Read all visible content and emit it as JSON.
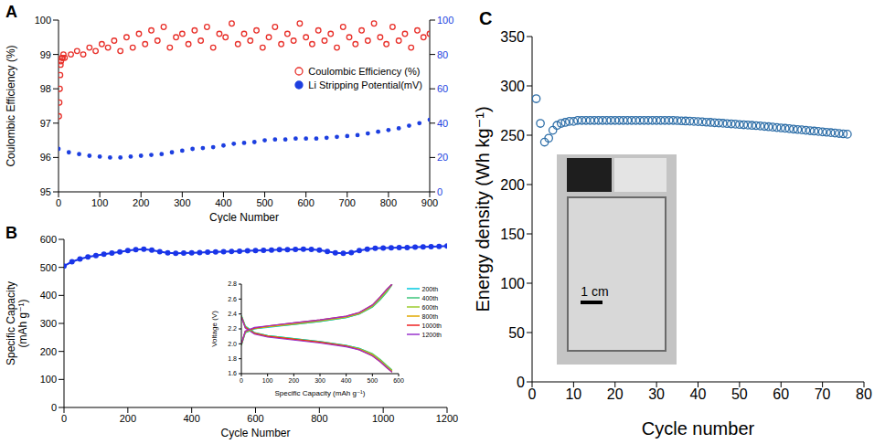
{
  "chart_data": [
    {
      "label": "A",
      "type": "scatter",
      "x_label": "Cycle Number",
      "y_label": "Coulombic Efficiency (%)",
      "xlim": [
        0,
        900
      ],
      "xticks": [
        0,
        100,
        200,
        300,
        400,
        500,
        600,
        700,
        800,
        900
      ],
      "ylim": [
        95,
        100
      ],
      "yticks": [
        95,
        96,
        97,
        98,
        99,
        100
      ],
      "y2lim": [
        0,
        100
      ],
      "y2ticks": [
        0,
        20,
        40,
        60,
        80,
        100
      ],
      "legend": "upper right",
      "series": [
        {
          "name": "Coulombic Efficiency (%)",
          "color": "#e8302a",
          "marker": "open_circle",
          "x": [
            1,
            2,
            3,
            4,
            5,
            6,
            8,
            10,
            12,
            15,
            30,
            45,
            60,
            75,
            90,
            105,
            120,
            135,
            150,
            165,
            180,
            195,
            210,
            225,
            240,
            255,
            270,
            285,
            300,
            315,
            330,
            345,
            360,
            375,
            390,
            405,
            420,
            435,
            450,
            465,
            480,
            495,
            510,
            525,
            540,
            555,
            570,
            585,
            600,
            615,
            630,
            645,
            660,
            675,
            690,
            705,
            720,
            735,
            750,
            765,
            780,
            795,
            810,
            825,
            840,
            855,
            870,
            885,
            900
          ],
          "values": [
            97.2,
            97.6,
            98.0,
            98.4,
            98.7,
            98.8,
            98.9,
            98.9,
            99.0,
            98.9,
            99.0,
            99.1,
            99.0,
            99.2,
            99.1,
            99.3,
            99.2,
            99.4,
            99.1,
            99.5,
            99.2,
            99.6,
            99.3,
            99.7,
            99.4,
            99.8,
            99.2,
            99.5,
            99.6,
            99.3,
            99.7,
            99.4,
            99.8,
            99.2,
            99.6,
            99.5,
            99.9,
            99.3,
            99.6,
            99.4,
            99.7,
            99.2,
            99.5,
            99.8,
            99.3,
            99.6,
            99.4,
            99.9,
            99.5,
            99.3,
            99.7,
            99.4,
            99.6,
            99.2,
            99.8,
            99.5,
            99.3,
            99.7,
            99.4,
            99.9,
            99.5,
            99.3,
            99.8,
            99.4,
            99.6,
            99.2,
            99.7,
            99.5,
            99.6
          ]
        },
        {
          "name": "Li Stripping Potential(mV)",
          "color": "#1d3fe0",
          "marker": "circle",
          "axis": "y2",
          "x": [
            0,
            25,
            50,
            75,
            100,
            125,
            150,
            175,
            200,
            225,
            250,
            275,
            300,
            325,
            350,
            375,
            400,
            425,
            450,
            475,
            500,
            525,
            550,
            575,
            600,
            625,
            650,
            675,
            700,
            725,
            750,
            775,
            800,
            825,
            850,
            875,
            900
          ],
          "values": [
            25,
            23,
            22,
            21,
            20.5,
            20,
            20,
            20.5,
            21,
            21.5,
            22,
            23,
            24,
            25,
            25.5,
            26,
            27,
            28,
            28.5,
            29,
            30,
            30.5,
            30.5,
            31,
            31,
            31,
            31.5,
            32,
            32.5,
            33,
            34,
            35,
            36,
            37,
            38.5,
            40,
            42
          ]
        }
      ]
    },
    {
      "label": "B",
      "type": "line",
      "x_label": "Cycle Number",
      "y_label": "Specific Capacity (mAh g⁻¹)",
      "xlim": [
        0,
        1200
      ],
      "xticks": [
        0,
        200,
        400,
        600,
        800,
        1000,
        1200
      ],
      "ylim": [
        0,
        600
      ],
      "yticks": [
        0,
        100,
        200,
        300,
        400,
        500,
        600
      ],
      "color": "#1a35e8",
      "marker": "circle",
      "x": [
        0,
        25,
        50,
        75,
        100,
        125,
        150,
        175,
        200,
        225,
        250,
        275,
        300,
        325,
        350,
        375,
        400,
        425,
        450,
        475,
        500,
        525,
        550,
        575,
        600,
        625,
        650,
        675,
        700,
        725,
        750,
        775,
        800,
        825,
        850,
        875,
        900,
        925,
        950,
        975,
        1000,
        1025,
        1050,
        1075,
        1100,
        1125,
        1150,
        1175,
        1200
      ],
      "values": [
        505,
        520,
        530,
        537,
        542,
        547,
        551,
        555,
        560,
        563,
        565,
        562,
        556,
        552,
        550,
        551,
        552,
        553,
        554,
        555,
        556,
        557,
        558,
        559,
        560,
        561,
        562,
        563,
        563,
        564,
        565,
        564,
        562,
        557,
        552,
        550,
        553,
        560,
        565,
        568,
        569,
        570,
        571,
        571,
        572,
        573,
        574,
        575,
        576
      ]
    },
    {
      "type": "line",
      "x_label": "Specific Capacity (mAh g⁻¹)",
      "y_label": "Voltage (V)",
      "xlim": [
        0,
        600
      ],
      "xticks": [
        0,
        100,
        200,
        300,
        400,
        500,
        600
      ],
      "ylim": [
        1.6,
        2.8
      ],
      "yticks": [
        1.6,
        1.8,
        {
          "value": 2,
          "label": "2.0"
        },
        2.2,
        2.4,
        2.6,
        2.8
      ],
      "legend": "upper right",
      "x": [
        0,
        15,
        50,
        100,
        200,
        300,
        400,
        450,
        500,
        530,
        555,
        575
      ],
      "series": [
        {
          "name": "200th",
          "color": "#00c8e0",
          "discharge": [
            2.38,
            2.24,
            2.15,
            2.11,
            2.07,
            2.03,
            1.98,
            1.94,
            1.86,
            1.78,
            1.7,
            1.64
          ],
          "charge": [
            1.98,
            2.15,
            2.2,
            2.22,
            2.26,
            2.3,
            2.35,
            2.4,
            2.5,
            2.6,
            2.7,
            2.8
          ]
        },
        {
          "name": "400th",
          "color": "#3cc47a",
          "discharge": [
            2.38,
            2.23,
            2.15,
            2.11,
            2.07,
            2.03,
            1.98,
            1.94,
            1.87,
            1.79,
            1.71,
            1.65
          ],
          "charge": [
            1.98,
            2.15,
            2.2,
            2.23,
            2.26,
            2.3,
            2.35,
            2.4,
            2.49,
            2.59,
            2.69,
            2.79
          ]
        },
        {
          "name": "600th",
          "color": "#9ccc2e",
          "discharge": [
            2.37,
            2.23,
            2.14,
            2.1,
            2.06,
            2.02,
            1.97,
            1.93,
            1.86,
            1.78,
            1.7,
            1.64
          ],
          "charge": [
            1.99,
            2.16,
            2.21,
            2.23,
            2.27,
            2.31,
            2.36,
            2.41,
            2.51,
            2.61,
            2.71,
            2.8
          ]
        },
        {
          "name": "800th",
          "color": "#e0a800",
          "discharge": [
            2.37,
            2.22,
            2.14,
            2.1,
            2.06,
            2.02,
            1.97,
            1.93,
            1.85,
            1.77,
            1.69,
            1.63
          ],
          "charge": [
            1.99,
            2.16,
            2.21,
            2.23,
            2.27,
            2.31,
            2.36,
            2.41,
            2.51,
            2.62,
            2.72,
            2.8
          ]
        },
        {
          "name": "1000th",
          "color": "#ee2222",
          "discharge": [
            2.36,
            2.22,
            2.14,
            2.1,
            2.06,
            2.02,
            1.97,
            1.92,
            1.84,
            1.76,
            1.68,
            1.62
          ],
          "charge": [
            2.0,
            2.17,
            2.21,
            2.24,
            2.28,
            2.32,
            2.37,
            2.42,
            2.52,
            2.63,
            2.73,
            2.8
          ]
        },
        {
          "name": "1200th",
          "color": "#9933cc",
          "discharge": [
            2.36,
            2.21,
            2.13,
            2.09,
            2.05,
            2.01,
            1.96,
            1.92,
            1.84,
            1.76,
            1.68,
            1.62
          ],
          "charge": [
            2.0,
            2.17,
            2.22,
            2.24,
            2.28,
            2.32,
            2.37,
            2.42,
            2.52,
            2.63,
            2.73,
            2.8
          ]
        }
      ]
    },
    {
      "label": "C",
      "type": "scatter",
      "x_label": "Cycle number",
      "y_label": "Energy density (Wh kg⁻¹)",
      "xlim": [
        0,
        80
      ],
      "xticks": [
        0,
        10,
        20,
        30,
        40,
        50,
        60,
        70,
        80
      ],
      "ylim": [
        0,
        350
      ],
      "yticks": [
        0,
        50,
        100,
        150,
        200,
        250,
        300,
        350
      ],
      "color": "#2f6fa8",
      "marker": "open_circle",
      "annotations": [
        "1 cm"
      ],
      "x": [
        1,
        2,
        3,
        4,
        5,
        6,
        7,
        8,
        9,
        10,
        11,
        12,
        13,
        14,
        15,
        16,
        17,
        18,
        19,
        20,
        21,
        22,
        23,
        24,
        25,
        26,
        27,
        28,
        29,
        30,
        31,
        32,
        33,
        34,
        35,
        36,
        37,
        38,
        39,
        40,
        41,
        42,
        43,
        44,
        45,
        46,
        47,
        48,
        49,
        50,
        51,
        52,
        53,
        54,
        55,
        56,
        57,
        58,
        59,
        60,
        61,
        62,
        63,
        64,
        65,
        66,
        67,
        68,
        69,
        70,
        71,
        72,
        73,
        74,
        75,
        76
      ],
      "values": [
        287,
        262,
        243,
        247,
        255,
        260,
        262,
        263,
        264,
        264,
        265,
        265,
        265,
        265,
        265,
        265,
        265,
        265,
        265,
        265,
        265,
        265,
        265,
        265,
        265,
        265,
        265,
        265,
        265,
        265,
        265,
        265,
        265,
        265,
        264.8,
        264.6,
        264.4,
        264.2,
        264,
        263.8,
        263.5,
        263.2,
        263,
        262.7,
        262.4,
        262.1,
        261.8,
        261.5,
        261.2,
        260.9,
        260.6,
        260.3,
        260,
        259.7,
        259.4,
        259,
        258.6,
        258.2,
        257.8,
        257.4,
        257,
        256.6,
        256.2,
        255.8,
        255.4,
        255,
        254.6,
        254.2,
        253.8,
        253.4,
        253,
        252.6,
        252.2,
        251.8,
        251.4,
        251
      ]
    }
  ]
}
